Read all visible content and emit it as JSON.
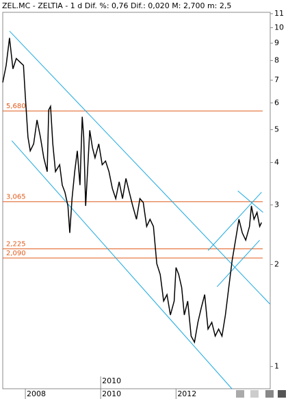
{
  "chart_data": {
    "type": "line",
    "title": "ZEL.MC - ZELTIA -  1 d Dif. %: 0,76 Dif.: 0,020 M: 2,700 m: 2,5",
    "color": "#000000",
    "x": [
      2007.4,
      2007.49,
      2007.58,
      2007.67,
      2007.76,
      2007.85,
      2007.95,
      2008.0,
      2008.07,
      2008.13,
      2008.22,
      2008.31,
      2008.4,
      2008.49,
      2008.58,
      2008.62,
      2008.67,
      2008.73,
      2008.8,
      2008.91,
      2008.98,
      2009.05,
      2009.13,
      2009.18,
      2009.24,
      2009.31,
      2009.38,
      2009.45,
      2009.51,
      2009.55,
      2009.6,
      2009.64,
      2009.71,
      2009.78,
      2009.85,
      2009.95,
      2010.04,
      2010.13,
      2010.22,
      2010.31,
      2010.4,
      2010.49,
      2010.58,
      2010.67,
      2010.76,
      2010.85,
      2010.95,
      2011.04,
      2011.13,
      2011.22,
      2011.31,
      2011.4,
      2011.49,
      2011.58,
      2011.67,
      2011.76,
      2011.85,
      2011.95,
      2012.0,
      2012.07,
      2012.15,
      2012.22,
      2012.31,
      2012.4,
      2012.49,
      2012.58,
      2012.67,
      2012.76,
      2012.85,
      2012.95,
      2013.04,
      2013.13,
      2013.22,
      2013.31,
      2013.4,
      2013.49,
      2013.58,
      2013.67,
      2013.76,
      2013.85,
      2013.95,
      2014.0,
      2014.07,
      2014.15,
      2014.22,
      2014.27
    ],
    "values": [
      6.89,
      7.74,
      9.33,
      7.56,
      8.11,
      7.93,
      7.74,
      6.28,
      4.75,
      4.33,
      4.54,
      5.34,
      4.75,
      4.13,
      3.76,
      5.72,
      5.86,
      4.54,
      3.76,
      3.94,
      3.43,
      3.27,
      2.98,
      2.48,
      3.13,
      3.76,
      4.33,
      3.43,
      5.46,
      4.75,
      2.98,
      3.59,
      4.98,
      4.43,
      4.13,
      4.54,
      3.94,
      4.04,
      3.76,
      3.35,
      3.13,
      3.51,
      3.13,
      3.59,
      3.27,
      2.98,
      2.72,
      3.13,
      3.05,
      2.59,
      2.72,
      2.59,
      2.01,
      1.87,
      1.56,
      1.63,
      1.42,
      1.56,
      1.96,
      1.87,
      1.71,
      1.42,
      1.56,
      1.23,
      1.18,
      1.35,
      1.49,
      1.63,
      1.29,
      1.35,
      1.23,
      1.29,
      1.23,
      1.42,
      1.71,
      2.06,
      2.36,
      2.72,
      2.48,
      2.36,
      2.59,
      2.98,
      2.72,
      2.85,
      2.59,
      2.66
    ],
    "log_y": true,
    "xlim": [
      2007.4,
      2014.5
    ],
    "ylim": [
      0.86,
      11.1
    ],
    "xticks": [
      2008,
      2010,
      2012
    ],
    "yticks": [
      1,
      2,
      3,
      4,
      5,
      6,
      7,
      8,
      9,
      10,
      11
    ],
    "levels": [
      {
        "value": 5.68,
        "label": "5,680"
      },
      {
        "value": 3.065,
        "label": "3,065"
      },
      {
        "value": 2.225,
        "label": "2,225"
      },
      {
        "value": 2.09,
        "label": "2,090"
      }
    ],
    "level_color": "#e05a1a",
    "trend_color": "#1aa8e0",
    "trendlines": [
      {
        "x": [
          2007.58,
          2014.49
        ],
        "y": [
          9.77,
          1.53
        ]
      },
      {
        "x": [
          2007.64,
          2013.49
        ],
        "y": [
          4.64,
          0.858
        ]
      },
      {
        "x": [
          2012.85,
          2014.27
        ],
        "y": [
          2.2,
          3.27
        ]
      },
      {
        "x": [
          2013.09,
          2014.22
        ],
        "y": [
          1.72,
          2.36
        ]
      },
      {
        "x": [
          2013.64,
          2014.31
        ],
        "y": [
          3.3,
          2.85
        ]
      }
    ],
    "annotations": [
      {
        "text": "2010",
        "x": 2010
      }
    ]
  }
}
